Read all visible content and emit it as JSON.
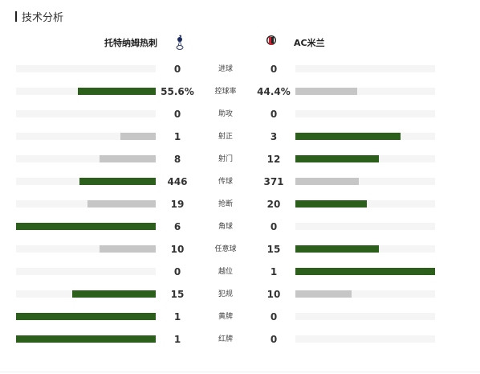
{
  "section": {
    "title": "技术分析"
  },
  "teams": {
    "home": {
      "name": "托特纳姆热刺",
      "logo_icon": "tottenham-cockerel-icon"
    },
    "away": {
      "name": "AC米兰",
      "logo_icon": "ac-milan-crest-icon"
    }
  },
  "colors": {
    "winner_bar": "#2d5f1c",
    "loser_bar": "#c6c6c6",
    "track": "#f5f5f5"
  },
  "stats": [
    {
      "label": "进球",
      "home": "0",
      "away": "0",
      "home_value": 0,
      "away_value": 0
    },
    {
      "label": "控球率",
      "home": "55.6%",
      "away": "44.4%",
      "home_value": 55.6,
      "away_value": 44.4
    },
    {
      "label": "助攻",
      "home": "0",
      "away": "0",
      "home_value": 0,
      "away_value": 0
    },
    {
      "label": "射正",
      "home": "1",
      "away": "3",
      "home_value": 1,
      "away_value": 3
    },
    {
      "label": "射门",
      "home": "8",
      "away": "12",
      "home_value": 8,
      "away_value": 12
    },
    {
      "label": "传球",
      "home": "446",
      "away": "371",
      "home_value": 446,
      "away_value": 371
    },
    {
      "label": "抢断",
      "home": "19",
      "away": "20",
      "home_value": 19,
      "away_value": 20
    },
    {
      "label": "角球",
      "home": "6",
      "away": "0",
      "home_value": 6,
      "away_value": 0
    },
    {
      "label": "任意球",
      "home": "10",
      "away": "15",
      "home_value": 10,
      "away_value": 15
    },
    {
      "label": "越位",
      "home": "0",
      "away": "1",
      "home_value": 0,
      "away_value": 1
    },
    {
      "label": "犯规",
      "home": "15",
      "away": "10",
      "home_value": 15,
      "away_value": 10
    },
    {
      "label": "黄牌",
      "home": "1",
      "away": "0",
      "home_value": 1,
      "away_value": 0
    },
    {
      "label": "红牌",
      "home": "1",
      "away": "0",
      "home_value": 1,
      "away_value": 0
    }
  ]
}
